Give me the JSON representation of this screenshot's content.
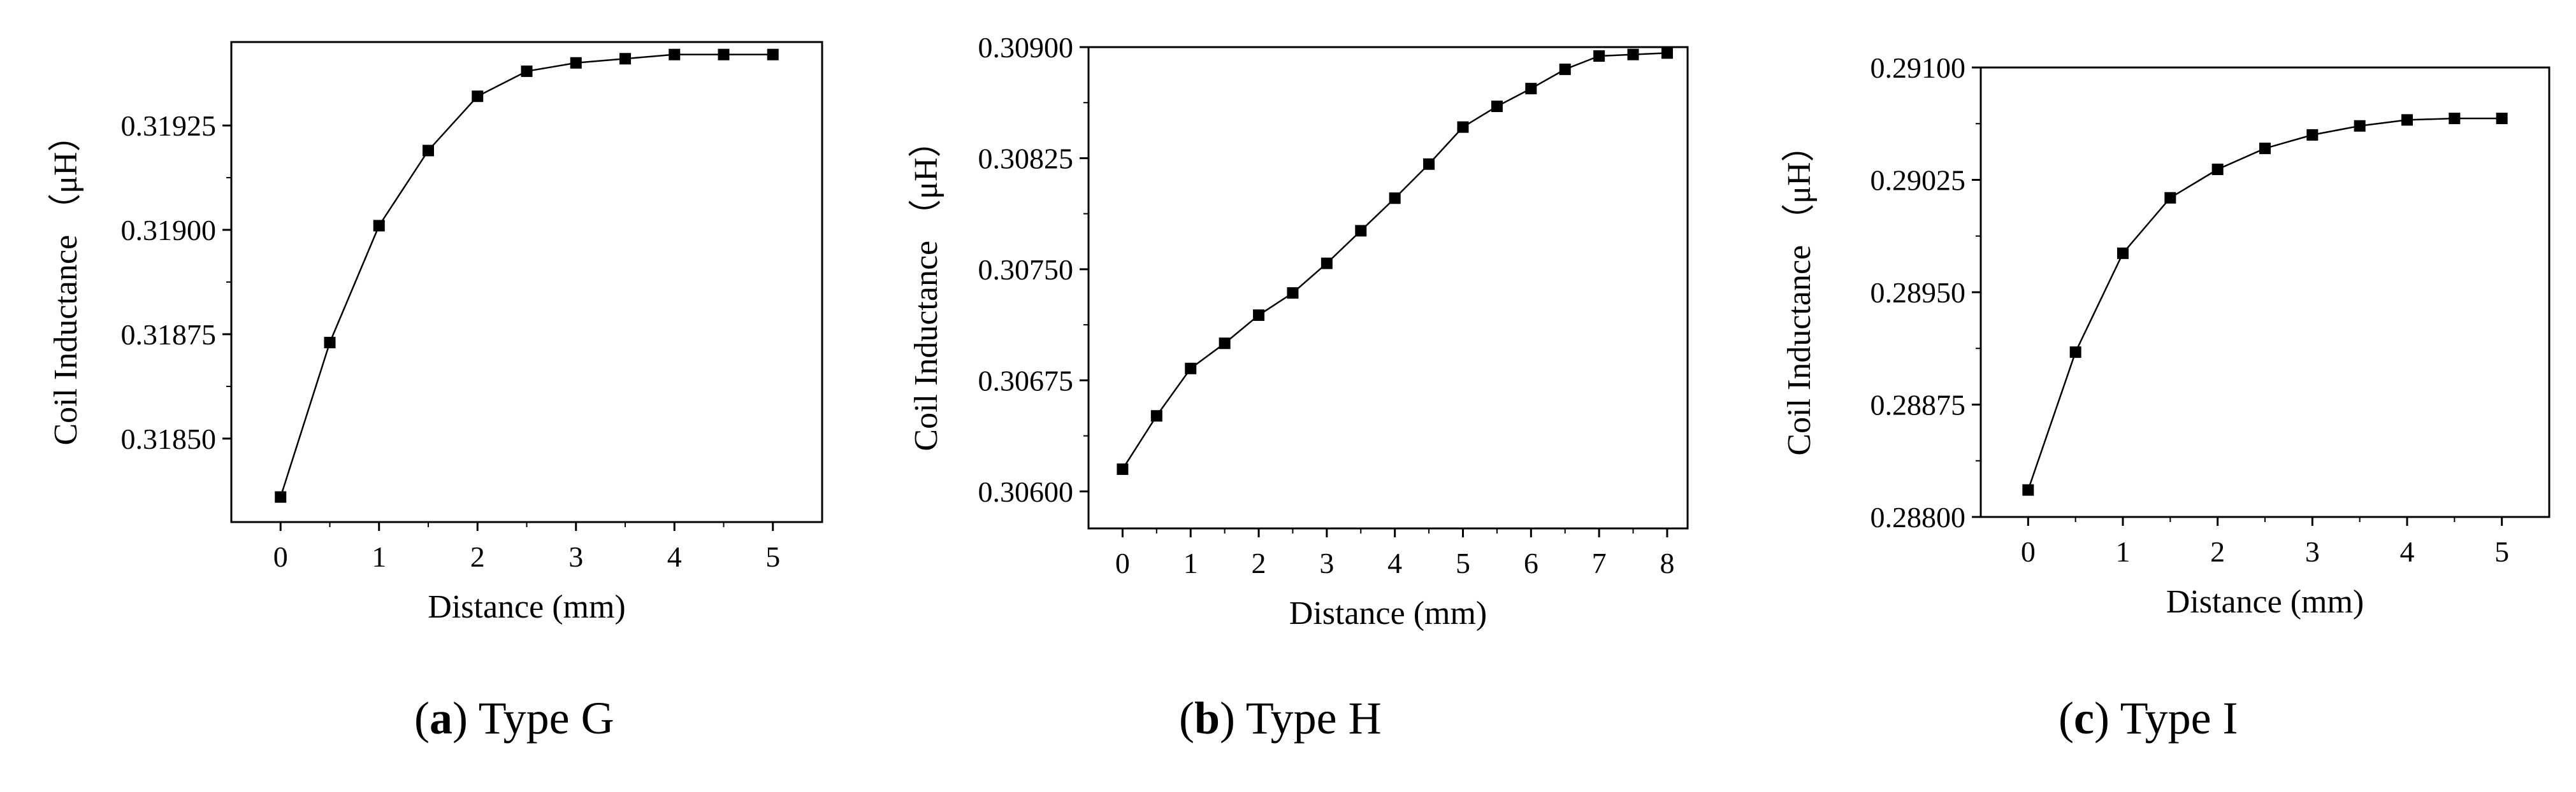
{
  "chart_data": [
    {
      "type": "line",
      "caption_letter": "a",
      "caption_text": ") Type G",
      "xlabel": "Distance (mm)",
      "ylabel": "Coil Inductance （μH）",
      "xlim": [
        -0.5,
        5.5
      ],
      "ylim": [
        0.3183,
        0.31945
      ],
      "xticks": [
        0,
        1,
        2,
        3,
        4,
        5
      ],
      "yticks": [
        0.3185,
        0.31875,
        0.319,
        0.31925
      ],
      "ytick_labels": [
        "0.31850",
        "0.31875",
        "0.31900",
        "0.31925"
      ],
      "grid": false,
      "series": [
        {
          "x": [
            0,
            0.5,
            1,
            1.5,
            2,
            2.5,
            3,
            3.5,
            4,
            4.5,
            5
          ],
          "y": [
            0.31836,
            0.31873,
            0.31901,
            0.31919,
            0.31932,
            0.31938,
            0.3194,
            0.31941,
            0.31942,
            0.31942,
            0.31942
          ]
        }
      ]
    },
    {
      "type": "line",
      "caption_letter": "b",
      "caption_text": ") Type H",
      "xlabel": "Distance (mm)",
      "ylabel": "Coil Inductance （μH）",
      "xlim": [
        -0.5,
        8.3
      ],
      "ylim": [
        0.30575,
        0.309
      ],
      "xticks": [
        0,
        1,
        2,
        3,
        4,
        5,
        6,
        7,
        8
      ],
      "yticks": [
        0.306,
        0.30675,
        0.3075,
        0.30825,
        0.309
      ],
      "ytick_labels": [
        "0.30600",
        "0.30675",
        "0.30750",
        "0.30825",
        "0.30900"
      ],
      "grid": false,
      "series": [
        {
          "x": [
            0,
            0.5,
            1,
            1.5,
            2,
            2.5,
            3,
            3.5,
            4,
            4.5,
            5,
            5.5,
            6,
            6.5,
            7,
            7.5,
            8
          ],
          "y": [
            0.30615,
            0.30651,
            0.30683,
            0.307,
            0.30719,
            0.30734,
            0.30754,
            0.30776,
            0.30798,
            0.30821,
            0.30846,
            0.3086,
            0.30872,
            0.30885,
            0.30894,
            0.30895,
            0.30896
          ]
        }
      ]
    },
    {
      "type": "line",
      "caption_letter": "c",
      "caption_text": ") Type I",
      "xlabel": "Distance (mm)",
      "ylabel": "Coil Inductance （μH）",
      "xlim": [
        -0.5,
        5.5
      ],
      "ylim": [
        0.288,
        0.291
      ],
      "xticks": [
        0,
        1,
        2,
        3,
        4,
        5
      ],
      "yticks": [
        0.288,
        0.28875,
        0.2895,
        0.29025,
        0.291
      ],
      "ytick_labels": [
        "0.28800",
        "0.28875",
        "0.28950",
        "0.29025",
        "0.29100"
      ],
      "grid": false,
      "series": [
        {
          "x": [
            0,
            0.5,
            1,
            1.5,
            2,
            2.5,
            3,
            3.5,
            4,
            4.5,
            5
          ],
          "y": [
            0.28818,
            0.2891,
            0.28976,
            0.29013,
            0.29032,
            0.29046,
            0.29055,
            0.29061,
            0.29065,
            0.29066,
            0.29066
          ]
        }
      ]
    }
  ]
}
